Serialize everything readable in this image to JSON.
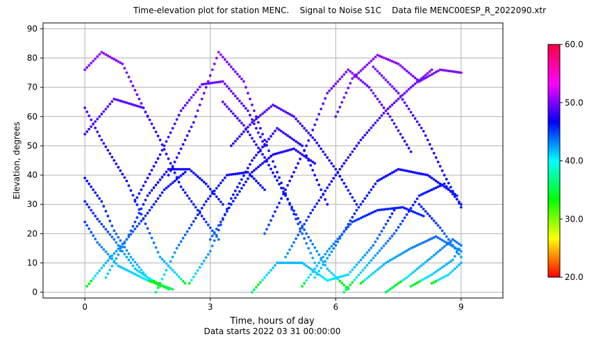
{
  "chart_data": {
    "type": "scatter",
    "title": "Time-elevation plot for station MENC.    Signal to Noise S1C    Data file MENC00ESP_R_2022090.xtr",
    "xlabel": "Time, hours of day",
    "xlabel_sub": "Data starts 2022 03 31 00:00:00",
    "ylabel": "Elevation, degrees",
    "xlim": [
      -1,
      10
    ],
    "ylim": [
      -2,
      92
    ],
    "x_ticks": [
      0,
      3,
      6,
      9
    ],
    "y_ticks": [
      0,
      10,
      20,
      30,
      40,
      50,
      60,
      70,
      80,
      90
    ],
    "grid": true,
    "colorbar": {
      "min": 20.0,
      "max": 60.0,
      "ticks": [
        "20.0",
        "30.0",
        "40.0",
        "50.0",
        "60.0"
      ],
      "tick_values": [
        20,
        30,
        40,
        50,
        60
      ],
      "colormap": "hsv"
    },
    "tracks": [
      {
        "x": [
          0.0,
          0.4,
          0.9,
          1.5
        ],
        "y": [
          76,
          82,
          78,
          60
        ]
      },
      {
        "x": [
          0.0,
          0.7,
          1.4,
          1.8,
          2.3,
          3.2
        ],
        "y": [
          54,
          66,
          63,
          52,
          36,
          18
        ]
      },
      {
        "x": [
          0.0,
          0.4,
          1.0,
          1.4,
          1.8,
          2.4
        ],
        "y": [
          63,
          52,
          38,
          25,
          12,
          3
        ]
      },
      {
        "x": [
          0.0,
          0.4,
          0.7,
          1.1,
          1.5,
          2.0
        ],
        "y": [
          39,
          31,
          21,
          12,
          5,
          1
        ]
      },
      {
        "x": [
          0.0,
          0.3,
          0.7,
          1.2,
          1.8
        ],
        "y": [
          31,
          25,
          18,
          8,
          2
        ]
      },
      {
        "x": [
          0.0,
          0.3,
          0.8,
          1.5,
          2.1
        ],
        "y": [
          24,
          17,
          9,
          4,
          1
        ]
      },
      {
        "x": [
          0.05,
          0.5,
          1.0,
          1.5,
          1.9,
          2.4
        ],
        "y": [
          2,
          10,
          18,
          27,
          35,
          41
        ]
      },
      {
        "x": [
          0.5,
          1.0,
          1.5,
          2.0,
          2.5,
          2.9,
          3.3
        ],
        "y": [
          5,
          18,
          33,
          42,
          42,
          37,
          30
        ]
      },
      {
        "x": [
          1.2,
          1.8,
          2.3,
          2.8,
          3.3,
          3.9,
          4.3
        ],
        "y": [
          31,
          47,
          62,
          71,
          72,
          62,
          50
        ]
      },
      {
        "x": [
          1.7,
          2.2,
          2.9,
          3.4,
          3.9,
          4.3
        ],
        "y": [
          0,
          15,
          31,
          40,
          41,
          35
        ]
      },
      {
        "x": [
          2.0,
          2.6,
          3.2,
          3.8,
          4.3,
          4.9,
          5.5
        ],
        "y": [
          40,
          58,
          82,
          72,
          52,
          30,
          10
        ]
      },
      {
        "x": [
          2.5,
          3.0,
          3.5,
          4.0,
          4.6,
          5.2,
          5.8
        ],
        "y": [
          3,
          14,
          32,
          45,
          56,
          50,
          30
        ]
      },
      {
        "x": [
          3.0,
          3.5,
          4.0,
          4.5,
          5.0,
          5.5
        ],
        "y": [
          18,
          30,
          41,
          47,
          49,
          44
        ]
      },
      {
        "x": [
          3.3,
          3.8,
          4.3,
          4.8,
          5.3,
          5.8,
          6.3
        ],
        "y": [
          65,
          57,
          46,
          33,
          20,
          8,
          1
        ]
      },
      {
        "x": [
          3.5,
          4.0,
          4.5,
          5.0,
          5.5,
          6.0,
          6.5
        ],
        "y": [
          50,
          58,
          64,
          60,
          52,
          42,
          30
        ]
      },
      {
        "x": [
          4.0,
          4.6,
          5.2,
          5.8,
          6.3,
          6.9,
          7.4
        ],
        "y": [
          0,
          10,
          10,
          4,
          6,
          16,
          28
        ]
      },
      {
        "x": [
          4.3,
          4.8,
          5.3,
          5.8,
          6.3,
          6.8,
          7.3,
          7.8
        ],
        "y": [
          20,
          35,
          50,
          68,
          76,
          70,
          60,
          48
        ]
      },
      {
        "x": [
          4.8,
          5.4,
          6.0,
          6.6,
          7.2,
          7.8,
          8.3
        ],
        "y": [
          12,
          27,
          40,
          52,
          62,
          70,
          76
        ]
      },
      {
        "x": [
          5.2,
          5.8,
          6.4,
          7.0,
          7.6,
          8.1
        ],
        "y": [
          2,
          14,
          24,
          28,
          29,
          26
        ]
      },
      {
        "x": [
          5.5,
          6.0,
          6.5,
          7.0,
          7.5,
          8.2,
          8.9
        ],
        "y": [
          5,
          16,
          28,
          38,
          42,
          40,
          33
        ]
      },
      {
        "x": [
          6.0,
          6.4,
          7.0,
          7.5,
          8.0,
          8.5,
          9.0
        ],
        "y": [
          60,
          73,
          81,
          78,
          72,
          76,
          75
        ]
      },
      {
        "x": [
          6.2,
          6.8,
          7.4,
          8.0,
          8.6,
          9.0
        ],
        "y": [
          0,
          10,
          20,
          33,
          37,
          30
        ]
      },
      {
        "x": [
          6.6,
          7.2,
          7.8,
          8.4,
          9.0
        ],
        "y": [
          3,
          10,
          15,
          19,
          14
        ]
      },
      {
        "x": [
          7.2,
          7.7,
          8.3,
          8.8,
          9.0
        ],
        "y": [
          0,
          5,
          12,
          18,
          16
        ]
      },
      {
        "x": [
          7.8,
          8.3,
          8.8,
          9.0
        ],
        "y": [
          2,
          6,
          11,
          16
        ]
      },
      {
        "x": [
          8.0,
          8.5,
          9.0
        ],
        "y": [
          30,
          22,
          12
        ]
      },
      {
        "x": [
          6.9,
          7.5,
          8.1,
          8.6,
          9.0
        ],
        "y": [
          77,
          68,
          55,
          40,
          29
        ]
      },
      {
        "x": [
          8.3,
          8.7,
          9.0
        ],
        "y": [
          3,
          6,
          10
        ]
      }
    ]
  }
}
